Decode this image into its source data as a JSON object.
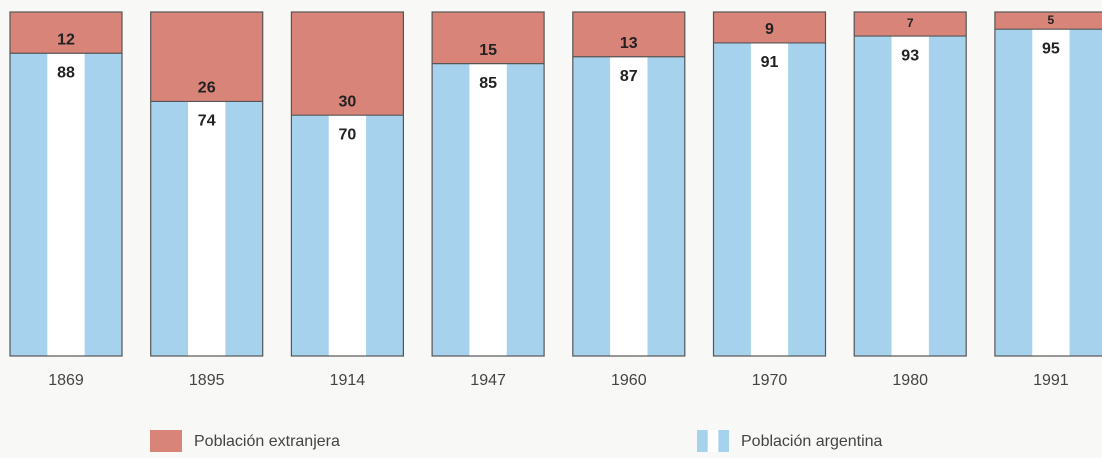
{
  "chart_data": {
    "type": "bar",
    "stacked": true,
    "categories": [
      "1869",
      "1895",
      "1914",
      "1947",
      "1960",
      "1970",
      "1980",
      "1991"
    ],
    "series": [
      {
        "name": "Población extranjera",
        "color": "#d98479",
        "values": [
          12,
          26,
          30,
          15,
          13,
          9,
          7,
          5
        ]
      },
      {
        "name": "Población argentina",
        "color": "#a6d2ee",
        "values": [
          88,
          74,
          70,
          85,
          87,
          91,
          93,
          95
        ]
      }
    ]
  }
}
